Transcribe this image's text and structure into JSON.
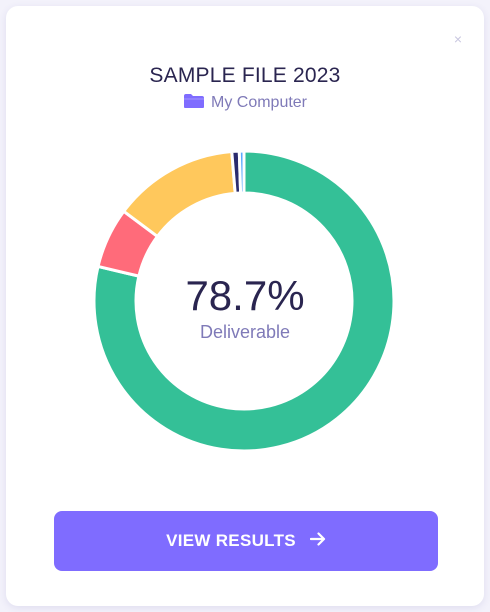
{
  "close": {
    "glyph": "×"
  },
  "file": {
    "title": "SAMPLE FILE 2023",
    "source_label": "My Computer",
    "source_icon": "folder-icon"
  },
  "result": {
    "percent_text": "78.7%",
    "status_label": "Deliverable"
  },
  "chart_data": {
    "type": "pie",
    "style": "donut",
    "slices": [
      {
        "percent": 78.7,
        "color": "#34c097"
      },
      {
        "percent": 6.5,
        "color": "#ff6b7a"
      },
      {
        "percent": 13.5,
        "color": "#ffc85c"
      },
      {
        "percent": 0.8,
        "color": "#2b2b6e"
      },
      {
        "percent": 0.5,
        "color": "#5aa9ff"
      }
    ]
  },
  "actions": {
    "view_results_label": "VIEW RESULTS",
    "view_results_icon": "arrow-right-icon"
  },
  "colors": {
    "accent": "#7f6cff",
    "text_dark": "#2a2550",
    "text_muted": "#7f7ab8"
  }
}
